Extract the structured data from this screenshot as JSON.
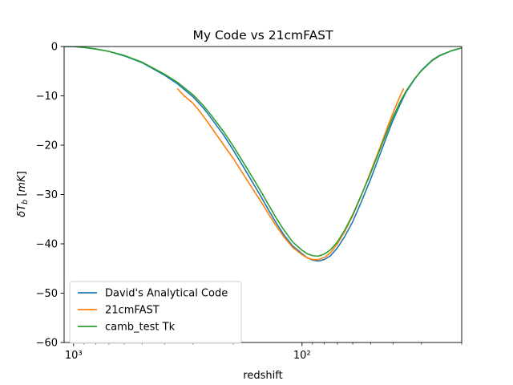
{
  "chart_data": {
    "type": "line",
    "title": "My Code vs 21cmFAST",
    "xlabel": "redshift",
    "ylabel": "δT_b [mK]",
    "xscale": "log",
    "x_reversed": true,
    "xlim": [
      1100,
      20
    ],
    "ylim": [
      -60,
      0
    ],
    "yticks": [
      0,
      -10,
      -20,
      -30,
      -40,
      -50,
      -60
    ],
    "xticks": [
      1000,
      100
    ],
    "xtick_labels": [
      "10³",
      "10²"
    ],
    "x_minor_ticks": [
      900,
      800,
      700,
      600,
      500,
      400,
      300,
      200,
      90,
      80,
      70,
      60,
      50,
      40,
      30,
      20
    ],
    "grid": false,
    "legend": {
      "position": "lower-left"
    },
    "series": [
      {
        "name": "David's Analytical Code",
        "color": "#1f77b4",
        "points": [
          [
            1100,
            0
          ],
          [
            1000,
            0
          ],
          [
            900,
            -0.2
          ],
          [
            800,
            -0.5
          ],
          [
            700,
            -1.0
          ],
          [
            600,
            -1.9
          ],
          [
            500,
            -3.3
          ],
          [
            400,
            -5.8
          ],
          [
            350,
            -7.6
          ],
          [
            300,
            -10.2
          ],
          [
            270,
            -12.5
          ],
          [
            250,
            -14.5
          ],
          [
            220,
            -18.0
          ],
          [
            200,
            -21.0
          ],
          [
            180,
            -24.5
          ],
          [
            160,
            -28.5
          ],
          [
            150,
            -30.7
          ],
          [
            140,
            -33.2
          ],
          [
            130,
            -35.7
          ],
          [
            120,
            -38.2
          ],
          [
            110,
            -40.4
          ],
          [
            100,
            -42.0
          ],
          [
            95,
            -42.8
          ],
          [
            90,
            -43.3
          ],
          [
            85,
            -43.5
          ],
          [
            80,
            -43.2
          ],
          [
            75,
            -42.4
          ],
          [
            70,
            -40.8
          ],
          [
            65,
            -38.5
          ],
          [
            60,
            -35.5
          ],
          [
            55,
            -31.5
          ],
          [
            50,
            -26.8
          ],
          [
            45,
            -21.2
          ],
          [
            42,
            -17.5
          ],
          [
            40,
            -15.0
          ],
          [
            37,
            -11.5
          ],
          [
            35,
            -9.2
          ],
          [
            32,
            -6.5
          ],
          [
            30,
            -4.8
          ],
          [
            27,
            -2.8
          ],
          [
            25,
            -1.8
          ],
          [
            22,
            -0.8
          ],
          [
            20,
            -0.3
          ]
        ]
      },
      {
        "name": "21cmFAST",
        "color": "#ff7f0e",
        "points": [
          [
            350,
            -8.6
          ],
          [
            330,
            -9.9
          ],
          [
            300,
            -11.5
          ],
          [
            280,
            -13.2
          ],
          [
            260,
            -15.2
          ],
          [
            240,
            -17.5
          ],
          [
            220,
            -20.0
          ],
          [
            200,
            -22.7
          ],
          [
            180,
            -26.0
          ],
          [
            160,
            -29.7
          ],
          [
            150,
            -31.7
          ],
          [
            140,
            -34.0
          ],
          [
            130,
            -36.3
          ],
          [
            120,
            -38.6
          ],
          [
            110,
            -40.7
          ],
          [
            100,
            -42.2
          ],
          [
            95,
            -42.8
          ],
          [
            90,
            -43.2
          ],
          [
            85,
            -43.2
          ],
          [
            80,
            -42.8
          ],
          [
            75,
            -41.8
          ],
          [
            70,
            -40.0
          ],
          [
            65,
            -37.5
          ],
          [
            60,
            -34.3
          ],
          [
            55,
            -30.2
          ],
          [
            50,
            -25.3
          ],
          [
            45,
            -19.8
          ],
          [
            42,
            -16.0
          ],
          [
            40,
            -13.5
          ],
          [
            38,
            -11.0
          ],
          [
            36,
            -8.6
          ]
        ]
      },
      {
        "name": "camb_test Tk",
        "color": "#2ca02c",
        "points": [
          [
            1100,
            0
          ],
          [
            1000,
            0
          ],
          [
            900,
            -0.2
          ],
          [
            800,
            -0.5
          ],
          [
            700,
            -1.0
          ],
          [
            600,
            -1.8
          ],
          [
            500,
            -3.2
          ],
          [
            400,
            -5.6
          ],
          [
            350,
            -7.3
          ],
          [
            300,
            -9.8
          ],
          [
            270,
            -12.0
          ],
          [
            250,
            -13.9
          ],
          [
            220,
            -17.3
          ],
          [
            200,
            -20.2
          ],
          [
            180,
            -23.6
          ],
          [
            160,
            -27.5
          ],
          [
            150,
            -29.7
          ],
          [
            140,
            -32.1
          ],
          [
            130,
            -34.7
          ],
          [
            120,
            -37.2
          ],
          [
            110,
            -39.6
          ],
          [
            100,
            -41.3
          ],
          [
            95,
            -42.0
          ],
          [
            90,
            -42.4
          ],
          [
            85,
            -42.5
          ],
          [
            80,
            -42.1
          ],
          [
            75,
            -41.2
          ],
          [
            70,
            -39.6
          ],
          [
            65,
            -37.2
          ],
          [
            60,
            -34.1
          ],
          [
            55,
            -30.1
          ],
          [
            50,
            -25.6
          ],
          [
            45,
            -20.2
          ],
          [
            42,
            -16.7
          ],
          [
            40,
            -14.3
          ],
          [
            37,
            -11.0
          ],
          [
            35,
            -9.0
          ],
          [
            32,
            -6.4
          ],
          [
            30,
            -4.9
          ],
          [
            27,
            -2.9
          ],
          [
            25,
            -1.9
          ],
          [
            22,
            -0.8
          ],
          [
            20,
            -0.3
          ]
        ]
      }
    ]
  }
}
